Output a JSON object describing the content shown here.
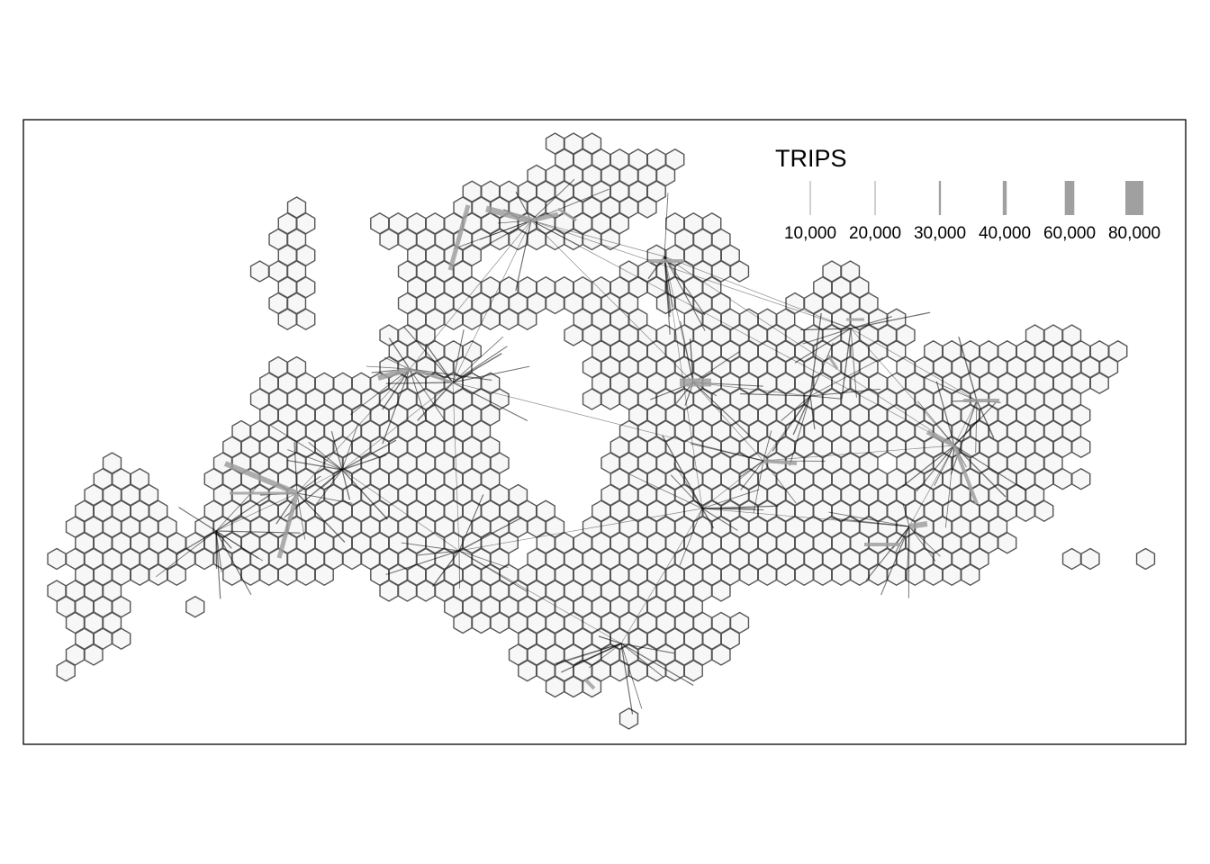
{
  "map": {
    "legend": {
      "title": "TRIPS",
      "items": [
        {
          "label": "10,000",
          "value": 10000
        },
        {
          "label": "20,000",
          "value": 20000
        },
        {
          "label": "30,000",
          "value": 30000
        },
        {
          "label": "40,000",
          "value": 40000
        },
        {
          "label": "60,000",
          "value": 60000
        },
        {
          "label": "80,000",
          "value": 80000
        }
      ]
    },
    "colors": {
      "hex_fill": "#f7f7f7",
      "hex_stroke": "#555555",
      "flow_heavy": "#a0a0a0",
      "flow_light": "#000000",
      "frame": "#000000"
    }
  }
}
